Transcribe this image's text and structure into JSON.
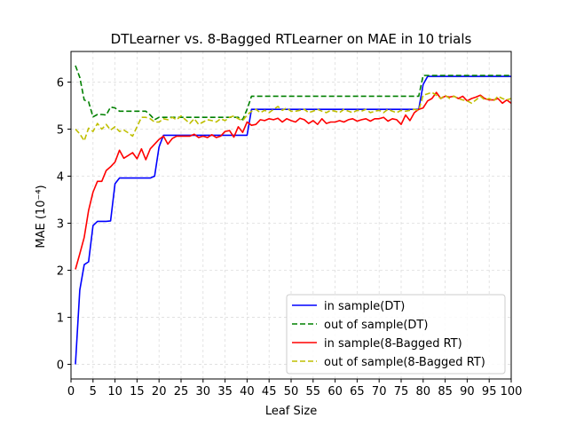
{
  "chart_data": {
    "type": "line",
    "title": "DTLearner vs. 8-Bagged RTLearner on MAE in 10 trials",
    "xlabel": "Leaf Size",
    "ylabel": "MAE (10⁻⁴)",
    "xlim": [
      0,
      100
    ],
    "ylim": [
      -0.31,
      6.65
    ],
    "xticks": [
      0,
      5,
      10,
      15,
      20,
      25,
      30,
      35,
      40,
      45,
      50,
      55,
      60,
      65,
      70,
      75,
      80,
      85,
      90,
      95,
      100
    ],
    "xtick_labels": [
      "0",
      "5",
      "10",
      "15",
      "20",
      "25",
      "30",
      "35",
      "40",
      "45",
      "50",
      "55",
      "60",
      "65",
      "70",
      "75",
      "80",
      "85",
      "90",
      "95",
      "100"
    ],
    "yticks": [
      0,
      1,
      2,
      3,
      4,
      5,
      6
    ],
    "ytick_labels": [
      "0",
      "1",
      "2",
      "3",
      "4",
      "5",
      "6"
    ],
    "grid": true,
    "legend_position": "lower-right",
    "series": [
      {
        "name": "in sample(DT)",
        "color": "#0000ff",
        "style": "solid",
        "x": [
          1,
          2,
          3,
          4,
          5,
          6,
          7,
          8,
          9,
          10,
          11,
          12,
          13,
          14,
          15,
          16,
          17,
          18,
          19,
          20,
          21,
          22,
          23,
          24,
          25,
          26,
          27,
          28,
          29,
          30,
          31,
          32,
          33,
          34,
          35,
          36,
          37,
          38,
          39,
          40,
          41,
          42,
          43,
          44,
          45,
          46,
          47,
          48,
          49,
          50,
          51,
          52,
          53,
          54,
          55,
          56,
          57,
          58,
          59,
          60,
          61,
          62,
          63,
          64,
          65,
          66,
          67,
          68,
          69,
          70,
          71,
          72,
          73,
          74,
          75,
          76,
          77,
          78,
          79,
          80,
          81,
          82,
          83,
          84,
          85,
          86,
          87,
          88,
          89,
          90,
          91,
          92,
          93,
          94,
          95,
          96,
          97,
          98,
          99,
          100
        ],
        "y": [
          0,
          1.58,
          2.12,
          2.18,
          2.95,
          3.04,
          3.04,
          3.04,
          3.05,
          3.84,
          3.96,
          3.96,
          3.96,
          3.96,
          3.96,
          3.96,
          3.96,
          3.96,
          4.0,
          4.62,
          4.87,
          4.87,
          4.87,
          4.87,
          4.87,
          4.87,
          4.87,
          4.87,
          4.87,
          4.87,
          4.87,
          4.87,
          4.87,
          4.87,
          4.87,
          4.87,
          4.87,
          4.87,
          4.87,
          4.87,
          5.42,
          5.42,
          5.42,
          5.42,
          5.42,
          5.42,
          5.42,
          5.42,
          5.42,
          5.42,
          5.42,
          5.42,
          5.42,
          5.42,
          5.42,
          5.42,
          5.42,
          5.42,
          5.42,
          5.42,
          5.42,
          5.42,
          5.42,
          5.42,
          5.42,
          5.42,
          5.42,
          5.42,
          5.42,
          5.42,
          5.42,
          5.42,
          5.42,
          5.42,
          5.42,
          5.42,
          5.42,
          5.42,
          5.42,
          5.95,
          6.12,
          6.12,
          6.12,
          6.12,
          6.12,
          6.12,
          6.12,
          6.12,
          6.12,
          6.12,
          6.12,
          6.12,
          6.12,
          6.12,
          6.12,
          6.12,
          6.12,
          6.12,
          6.12,
          6.12
        ]
      },
      {
        "name": "out of sample(DT)",
        "color": "#008000",
        "style": "dashed",
        "x": [
          1,
          2,
          3,
          4,
          5,
          6,
          7,
          8,
          9,
          10,
          11,
          12,
          13,
          14,
          15,
          16,
          17,
          18,
          19,
          20,
          21,
          22,
          23,
          24,
          25,
          26,
          27,
          28,
          29,
          30,
          31,
          32,
          33,
          34,
          35,
          36,
          37,
          38,
          39,
          40,
          41,
          42,
          43,
          44,
          45,
          46,
          47,
          48,
          49,
          50,
          51,
          52,
          53,
          54,
          55,
          56,
          57,
          58,
          59,
          60,
          61,
          62,
          63,
          64,
          65,
          66,
          67,
          68,
          69,
          70,
          71,
          72,
          73,
          74,
          75,
          76,
          77,
          78,
          79,
          80,
          81,
          82,
          83,
          84,
          85,
          86,
          87,
          88,
          89,
          90,
          91,
          92,
          93,
          94,
          95,
          96,
          97,
          98,
          99,
          100
        ],
        "y": [
          6.35,
          6.1,
          5.62,
          5.58,
          5.26,
          5.31,
          5.31,
          5.3,
          5.47,
          5.45,
          5.38,
          5.38,
          5.38,
          5.38,
          5.38,
          5.38,
          5.38,
          5.3,
          5.2,
          5.25,
          5.25,
          5.25,
          5.25,
          5.25,
          5.25,
          5.25,
          5.25,
          5.25,
          5.25,
          5.25,
          5.25,
          5.25,
          5.25,
          5.25,
          5.25,
          5.25,
          5.25,
          5.25,
          5.2,
          5.42,
          5.7,
          5.7,
          5.7,
          5.7,
          5.7,
          5.7,
          5.7,
          5.7,
          5.7,
          5.7,
          5.7,
          5.7,
          5.7,
          5.7,
          5.7,
          5.7,
          5.7,
          5.7,
          5.7,
          5.7,
          5.7,
          5.7,
          5.7,
          5.7,
          5.7,
          5.7,
          5.7,
          5.7,
          5.7,
          5.7,
          5.7,
          5.7,
          5.7,
          5.7,
          5.7,
          5.7,
          5.7,
          5.7,
          5.7,
          6.14,
          6.14,
          6.14,
          6.14,
          6.14,
          6.14,
          6.14,
          6.14,
          6.14,
          6.14,
          6.14,
          6.14,
          6.14,
          6.14,
          6.14,
          6.14,
          6.14,
          6.14,
          6.14,
          6.14,
          6.14
        ]
      },
      {
        "name": "in sample(8-Bagged RT)",
        "color": "#ff0000",
        "style": "solid",
        "x": [
          1,
          2,
          3,
          4,
          5,
          6,
          7,
          8,
          9,
          10,
          11,
          12,
          13,
          14,
          15,
          16,
          17,
          18,
          19,
          20,
          21,
          22,
          23,
          24,
          25,
          26,
          27,
          28,
          29,
          30,
          31,
          32,
          33,
          34,
          35,
          36,
          37,
          38,
          39,
          40,
          41,
          42,
          43,
          44,
          45,
          46,
          47,
          48,
          49,
          50,
          51,
          52,
          53,
          54,
          55,
          56,
          57,
          58,
          59,
          60,
          61,
          62,
          63,
          64,
          65,
          66,
          67,
          68,
          69,
          70,
          71,
          72,
          73,
          74,
          75,
          76,
          77,
          78,
          79,
          80,
          81,
          82,
          83,
          84,
          85,
          86,
          87,
          88,
          89,
          90,
          91,
          92,
          93,
          94,
          95,
          96,
          97,
          98,
          99,
          100
        ],
        "y": [
          2.02,
          2.35,
          2.7,
          3.27,
          3.66,
          3.89,
          3.89,
          4.12,
          4.2,
          4.3,
          4.55,
          4.38,
          4.44,
          4.5,
          4.37,
          4.58,
          4.35,
          4.58,
          4.68,
          4.78,
          4.85,
          4.68,
          4.8,
          4.85,
          4.85,
          4.85,
          4.85,
          4.89,
          4.82,
          4.85,
          4.82,
          4.88,
          4.82,
          4.85,
          4.95,
          4.97,
          4.83,
          5.05,
          4.93,
          5.15,
          5.08,
          5.1,
          5.2,
          5.18,
          5.22,
          5.2,
          5.23,
          5.15,
          5.22,
          5.18,
          5.15,
          5.23,
          5.2,
          5.12,
          5.18,
          5.1,
          5.22,
          5.12,
          5.15,
          5.15,
          5.18,
          5.15,
          5.2,
          5.22,
          5.17,
          5.2,
          5.22,
          5.17,
          5.22,
          5.22,
          5.25,
          5.17,
          5.22,
          5.2,
          5.1,
          5.3,
          5.18,
          5.35,
          5.42,
          5.45,
          5.6,
          5.65,
          5.78,
          5.65,
          5.7,
          5.68,
          5.7,
          5.65,
          5.7,
          5.6,
          5.65,
          5.68,
          5.72,
          5.65,
          5.62,
          5.62,
          5.65,
          5.55,
          5.62,
          5.55
        ]
      },
      {
        "name": "out of sample(8-Bagged RT)",
        "color": "#bfbf00",
        "style": "dashed",
        "x": [
          1,
          2,
          3,
          4,
          5,
          6,
          7,
          8,
          9,
          10,
          11,
          12,
          13,
          14,
          15,
          16,
          17,
          18,
          19,
          20,
          21,
          22,
          23,
          24,
          25,
          26,
          27,
          28,
          29,
          30,
          31,
          32,
          33,
          34,
          35,
          36,
          37,
          38,
          39,
          40,
          41,
          42,
          43,
          44,
          45,
          46,
          47,
          48,
          49,
          50,
          51,
          52,
          53,
          54,
          55,
          56,
          57,
          58,
          59,
          60,
          61,
          62,
          63,
          64,
          65,
          66,
          67,
          68,
          69,
          70,
          71,
          72,
          73,
          74,
          75,
          76,
          77,
          78,
          79,
          80,
          81,
          82,
          83,
          84,
          85,
          86,
          87,
          88,
          89,
          90,
          91,
          92,
          93,
          94,
          95,
          96,
          97,
          98,
          99,
          100
        ],
        "y": [
          5.0,
          4.9,
          4.75,
          5.02,
          4.95,
          5.12,
          5.0,
          5.1,
          4.98,
          5.05,
          4.95,
          4.98,
          4.92,
          4.85,
          5.05,
          5.25,
          5.25,
          5.22,
          5.15,
          5.15,
          5.22,
          5.2,
          5.25,
          5.2,
          5.28,
          5.2,
          5.12,
          5.22,
          5.1,
          5.15,
          5.2,
          5.18,
          5.15,
          5.22,
          5.18,
          5.25,
          5.28,
          5.22,
          5.18,
          5.3,
          5.38,
          5.42,
          5.35,
          5.4,
          5.35,
          5.42,
          5.48,
          5.4,
          5.45,
          5.38,
          5.38,
          5.4,
          5.42,
          5.35,
          5.38,
          5.42,
          5.38,
          5.35,
          5.4,
          5.38,
          5.35,
          5.42,
          5.38,
          5.35,
          5.4,
          5.38,
          5.42,
          5.35,
          5.38,
          5.4,
          5.35,
          5.42,
          5.38,
          5.35,
          5.4,
          5.38,
          5.4,
          5.42,
          5.4,
          5.72,
          5.75,
          5.78,
          5.72,
          5.65,
          5.72,
          5.65,
          5.7,
          5.65,
          5.62,
          5.6,
          5.55,
          5.62,
          5.7,
          5.62,
          5.65,
          5.6,
          5.7,
          5.65,
          5.62,
          5.65
        ]
      }
    ]
  }
}
